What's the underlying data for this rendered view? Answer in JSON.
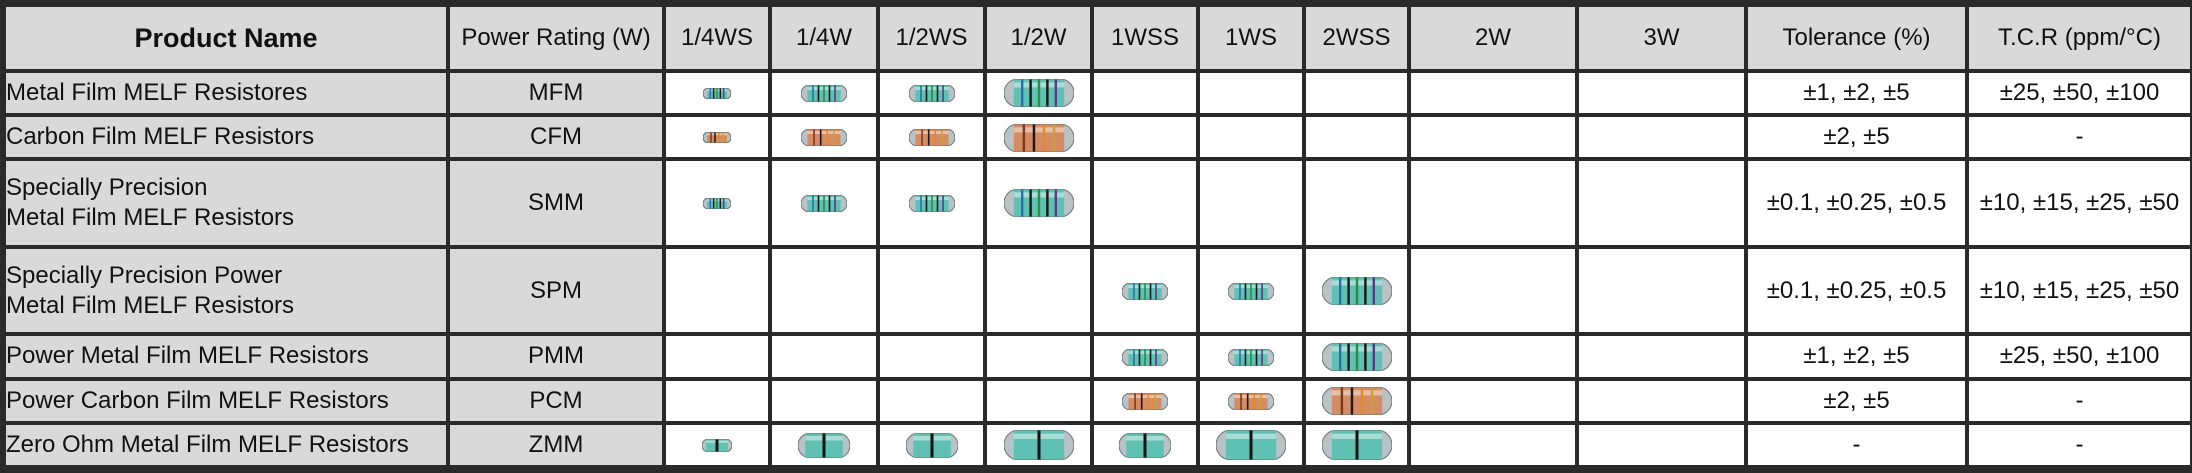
{
  "header": {
    "product_name": "Product Name",
    "power_rating": "Power Rating (W)",
    "ratings": [
      "1/4WS",
      "1/4W",
      "1/2WS",
      "1/2W",
      "1WSS",
      "1WS",
      "2WSS",
      "2W",
      "3W"
    ],
    "tolerance": "Tolerance (%)",
    "tcr": "T.C.R (ppm/°C)"
  },
  "colors": {
    "frame": "#2a2a2a",
    "header_bg": "#d9d9d9",
    "cell_bg": "#ffffff",
    "metal_body": "#5fc1b4",
    "carbon_body": "#d58b63",
    "cap": "#b9c2c4"
  },
  "rows": [
    {
      "name_lines": [
        "Metal Film MELF Resistores"
      ],
      "code": "MFM",
      "tolerance": "±1, ±2, ±5",
      "tcr": "±25, ±50, ±100",
      "icons": [
        "metal-resistor-icon",
        "metal-resistor-icon",
        "metal-resistor-icon",
        "metal-resistor-icon",
        "",
        "",
        "",
        "",
        ""
      ]
    },
    {
      "name_lines": [
        "Carbon Film MELF Resistors"
      ],
      "code": "CFM",
      "tolerance": "±2, ±5",
      "tcr": "-",
      "icons": [
        "carbon-resistor-icon",
        "carbon-resistor-icon",
        "carbon-resistor-icon",
        "carbon-resistor-icon",
        "",
        "",
        "",
        "",
        ""
      ]
    },
    {
      "name_lines": [
        "Specially Precision",
        "Metal Film MELF Resistors"
      ],
      "code": "SMM",
      "tolerance": "±0.1, ±0.25, ±0.5",
      "tcr": "±10, ±15, ±25, ±50",
      "icons": [
        "metal-resistor-icon",
        "metal-resistor-icon",
        "metal-resistor-icon",
        "metal-resistor-icon",
        "",
        "",
        "",
        "",
        ""
      ]
    },
    {
      "name_lines": [
        "Specially Precision Power",
        "Metal Film MELF Resistors"
      ],
      "code": "SPM",
      "tolerance": "±0.1, ±0.25, ±0.5",
      "tcr": "±10, ±15, ±25, ±50",
      "icons": [
        "",
        "",
        "",
        "",
        "metal-resistor-icon",
        "metal-resistor-icon",
        "metal-resistor-icon",
        "",
        ""
      ]
    },
    {
      "name_lines": [
        "Power Metal Film MELF Resistors"
      ],
      "code": "PMM",
      "tolerance": "±1, ±2, ±5",
      "tcr": "±25, ±50, ±100",
      "icons": [
        "",
        "",
        "",
        "",
        "metal-resistor-icon",
        "metal-resistor-icon",
        "metal-resistor-icon",
        "",
        ""
      ]
    },
    {
      "name_lines": [
        "Power Carbon Film MELF Resistors"
      ],
      "code": "PCM",
      "tolerance": "±2, ±5",
      "tcr": "-",
      "icons": [
        "",
        "",
        "",
        "",
        "carbon-resistor-icon",
        "carbon-resistor-icon",
        "carbon-resistor-icon",
        "",
        ""
      ]
    },
    {
      "name_lines": [
        "Zero Ohm Metal Film MELF Resistors"
      ],
      "code": "ZMM",
      "tolerance": "-",
      "tcr": "-",
      "icons": [
        "zero-ohm-resistor-icon",
        "zero-ohm-resistor-icon",
        "zero-ohm-resistor-icon",
        "zero-ohm-resistor-icon",
        "zero-ohm-resistor-icon",
        "zero-ohm-resistor-icon",
        "zero-ohm-resistor-icon",
        "",
        ""
      ]
    }
  ]
}
